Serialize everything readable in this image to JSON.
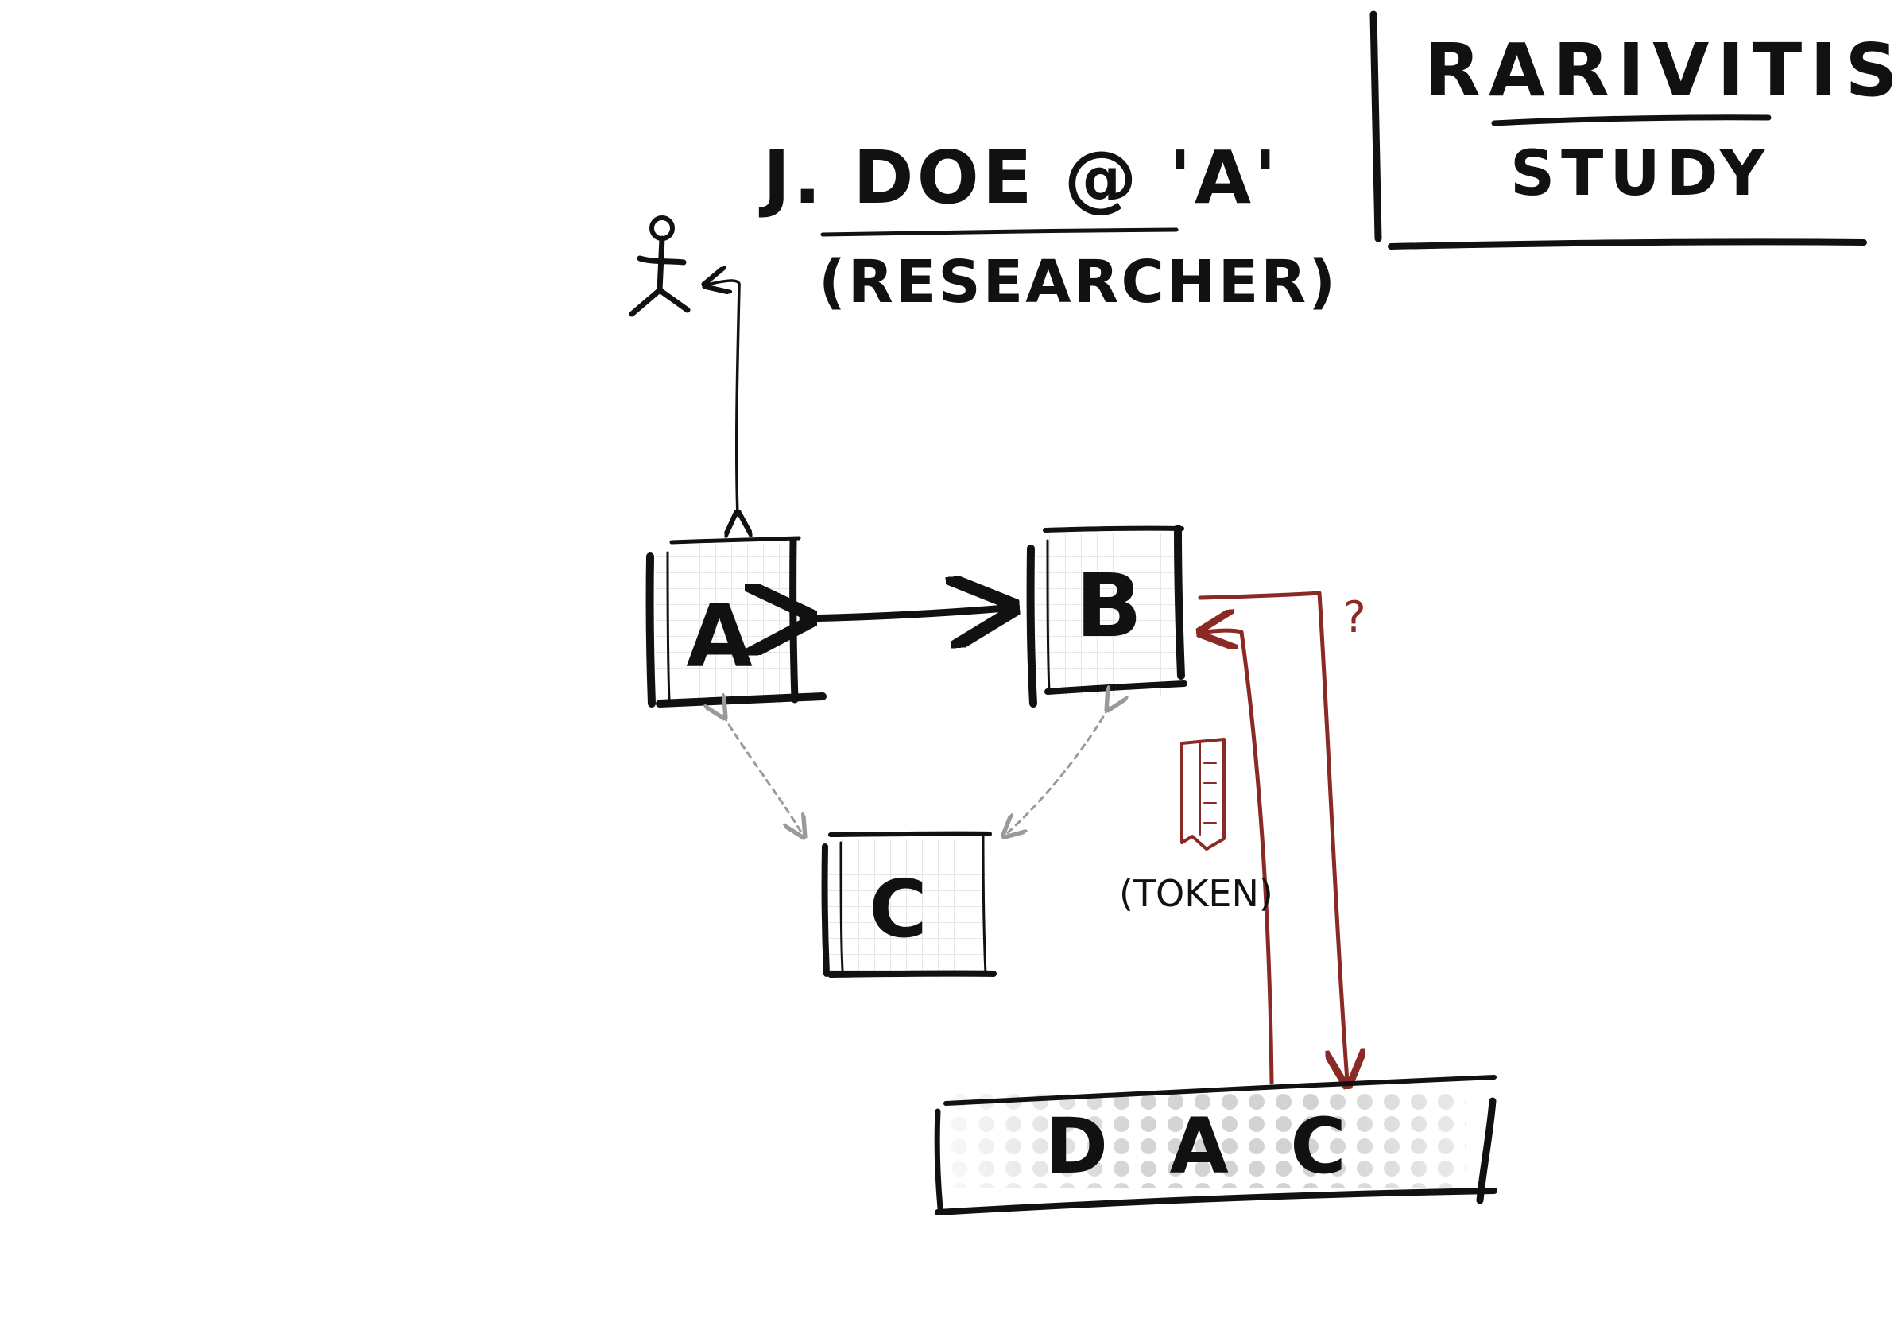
{
  "title": {
    "line1": "RARIVITIS",
    "line2": "STUDY"
  },
  "researcher": {
    "name": "J. DOE @ 'A'",
    "role": "(RESEARCHER)"
  },
  "nodes": {
    "a": "A",
    "b": "B",
    "c": "C",
    "dac": "D A C"
  },
  "annotations": {
    "question": "?",
    "token": "(TOKEN)"
  },
  "colors": {
    "ink": "#111111",
    "red_ink": "#8b2a24",
    "faint": "#9a9a9a"
  }
}
